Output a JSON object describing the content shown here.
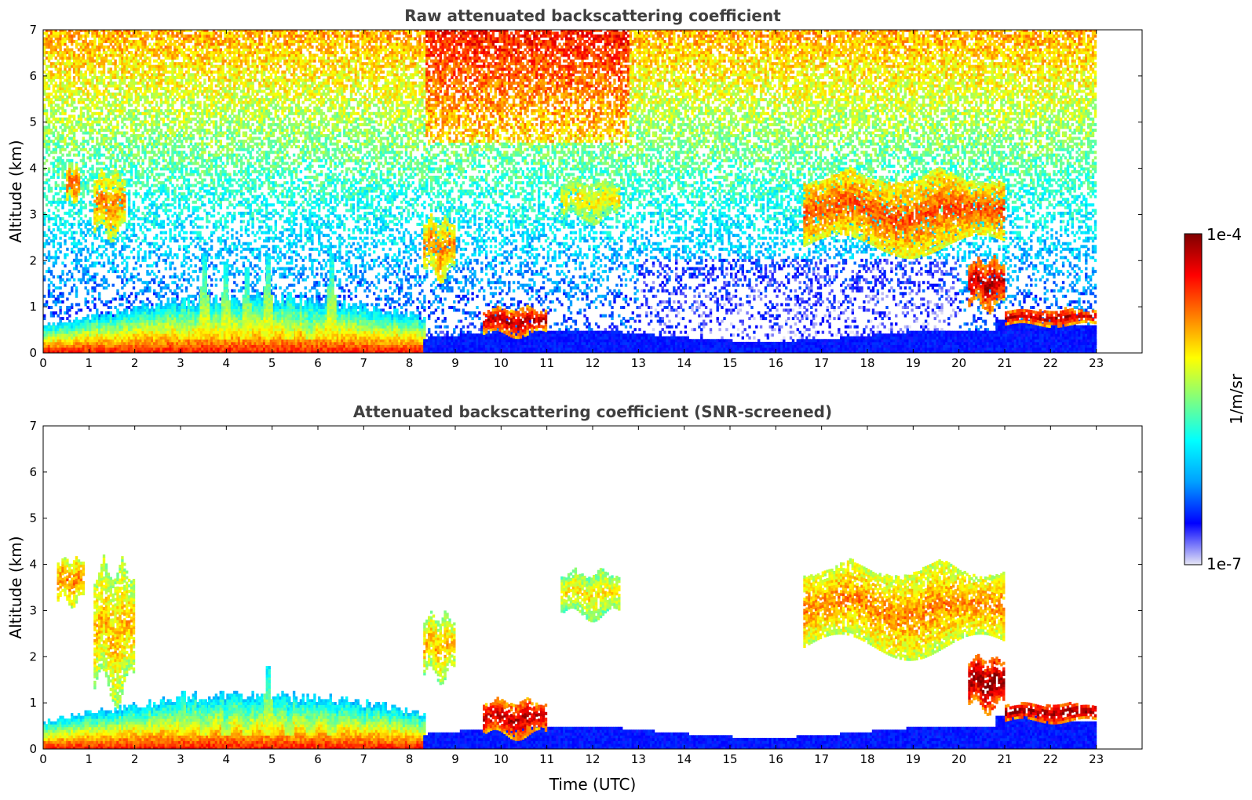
{
  "chart_data": [
    {
      "type": "heatmap",
      "title": "Raw attenuated backscattering coefficient",
      "xlabel": "",
      "ylabel": "Altitude (km)",
      "xlim": [
        0,
        24
      ],
      "ylim": [
        0,
        7
      ],
      "xticks": [
        "0",
        "1",
        "2",
        "3",
        "4",
        "5",
        "6",
        "7",
        "8",
        "9",
        "10",
        "11",
        "12",
        "13",
        "14",
        "15",
        "16",
        "17",
        "18",
        "19",
        "20",
        "21",
        "22",
        "23"
      ],
      "yticks": [
        "0",
        "1",
        "2",
        "3",
        "4",
        "5",
        "6",
        "7"
      ],
      "data_end_time": 23,
      "colormap": "jet",
      "color_scale": "log",
      "features": [
        {
          "kind": "boundary_layer",
          "t": [
            0,
            8.3
          ],
          "top_km": [
            0.3,
            1.2
          ],
          "level": 0.85
        },
        {
          "kind": "convective_plumes",
          "t": [
            2.8,
            6.5
          ],
          "top_km": [
            0.8,
            2.3
          ],
          "level": 0.7
        },
        {
          "kind": "cloud",
          "t": [
            0.5,
            0.8
          ],
          "z": [
            3.3,
            4.1
          ],
          "level": 0.8
        },
        {
          "kind": "cloud",
          "t": [
            1.1,
            1.8
          ],
          "z": [
            2.6,
            4.0
          ],
          "level": 0.75
        },
        {
          "kind": "cloud",
          "t": [
            8.3,
            9.0
          ],
          "z": [
            1.7,
            3.0
          ],
          "level": 0.75
        },
        {
          "kind": "cloud",
          "t": [
            11.3,
            12.6
          ],
          "z": [
            2.9,
            3.8
          ],
          "level": 0.65
        },
        {
          "kind": "cloud",
          "t": [
            16.6,
            21.0
          ],
          "z": [
            2.3,
            4.0
          ],
          "level": 0.8
        },
        {
          "kind": "cloud",
          "t": [
            20.2,
            21.0
          ],
          "z": [
            1.0,
            2.1
          ],
          "level": 0.95
        },
        {
          "kind": "low_cloud",
          "t": [
            9.6,
            11.0
          ],
          "z": [
            0.4,
            1.0
          ],
          "level": 0.95
        },
        {
          "kind": "low_cloud",
          "t": [
            21.0,
            23.0
          ],
          "z": [
            0.6,
            0.95
          ],
          "level": 0.95
        }
      ]
    },
    {
      "type": "heatmap",
      "title": "Attenuated backscattering coefficient (SNR-screened)",
      "xlabel": "Time (UTC)",
      "ylabel": "Altitude (km)",
      "xlim": [
        0,
        24
      ],
      "ylim": [
        0,
        7
      ],
      "xticks": [
        "0",
        "1",
        "2",
        "3",
        "4",
        "5",
        "6",
        "7",
        "8",
        "9",
        "10",
        "11",
        "12",
        "13",
        "14",
        "15",
        "16",
        "17",
        "18",
        "19",
        "20",
        "21",
        "22",
        "23"
      ],
      "yticks": [
        "0",
        "1",
        "2",
        "3",
        "4",
        "5",
        "6",
        "7"
      ],
      "data_end_time": 23,
      "colormap": "jet",
      "color_scale": "log",
      "features": [
        {
          "kind": "boundary_layer",
          "t": [
            0,
            8.3
          ],
          "top_km": [
            0.3,
            1.2
          ],
          "level": 0.85
        },
        {
          "kind": "convective_plumes",
          "t": [
            2.8,
            6.5
          ],
          "top_km": [
            0.8,
            1.9
          ],
          "level": 0.7
        },
        {
          "kind": "cloud",
          "t": [
            0.3,
            0.9
          ],
          "z": [
            3.2,
            4.2
          ],
          "level": 0.75
        },
        {
          "kind": "cloud",
          "t": [
            1.1,
            2.0
          ],
          "z": [
            1.3,
            4.2
          ],
          "level": 0.7
        },
        {
          "kind": "cloud",
          "t": [
            8.3,
            9.0
          ],
          "z": [
            1.6,
            3.0
          ],
          "level": 0.7
        },
        {
          "kind": "cloud",
          "t": [
            11.3,
            12.6
          ],
          "z": [
            2.9,
            3.9
          ],
          "level": 0.65
        },
        {
          "kind": "cloud",
          "t": [
            16.6,
            21.0
          ],
          "z": [
            2.2,
            4.1
          ],
          "level": 0.75
        },
        {
          "kind": "cloud",
          "t": [
            20.2,
            21.0
          ],
          "z": [
            0.9,
            2.1
          ],
          "level": 1.0
        },
        {
          "kind": "low_cloud",
          "t": [
            9.6,
            11.0
          ],
          "z": [
            0.3,
            1.1
          ],
          "level": 0.95
        },
        {
          "kind": "low_cloud",
          "t": [
            21.0,
            23.0
          ],
          "z": [
            0.6,
            1.0
          ],
          "level": 1.0
        }
      ]
    }
  ],
  "colorbar": {
    "label": "1/m/sr",
    "max_label": "1e-4",
    "min_label": "1e-7",
    "vmin": 1e-07,
    "vmax": 0.0001,
    "stops": [
      "#e6e6f5",
      "#0000ff",
      "#00a0ff",
      "#00ffff",
      "#7fff7f",
      "#ffff00",
      "#ff8000",
      "#ff0000",
      "#800000"
    ]
  }
}
